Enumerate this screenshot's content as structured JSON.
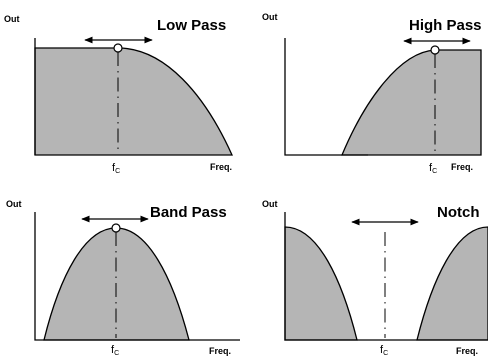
{
  "diagram": {
    "axis_labels": {
      "out": "Out",
      "freq": "Freq."
    },
    "cutoff_label": {
      "main": "f",
      "sub": "C"
    },
    "panels": [
      {
        "id": "low-pass",
        "title": "Low Pass"
      },
      {
        "id": "high-pass",
        "title": "High Pass"
      },
      {
        "id": "band-pass",
        "title": "Band Pass"
      },
      {
        "id": "notch",
        "title": "Notch"
      }
    ],
    "colors": {
      "fill": "#b5b5b5",
      "stroke": "#000000",
      "background": "#ffffff"
    }
  }
}
